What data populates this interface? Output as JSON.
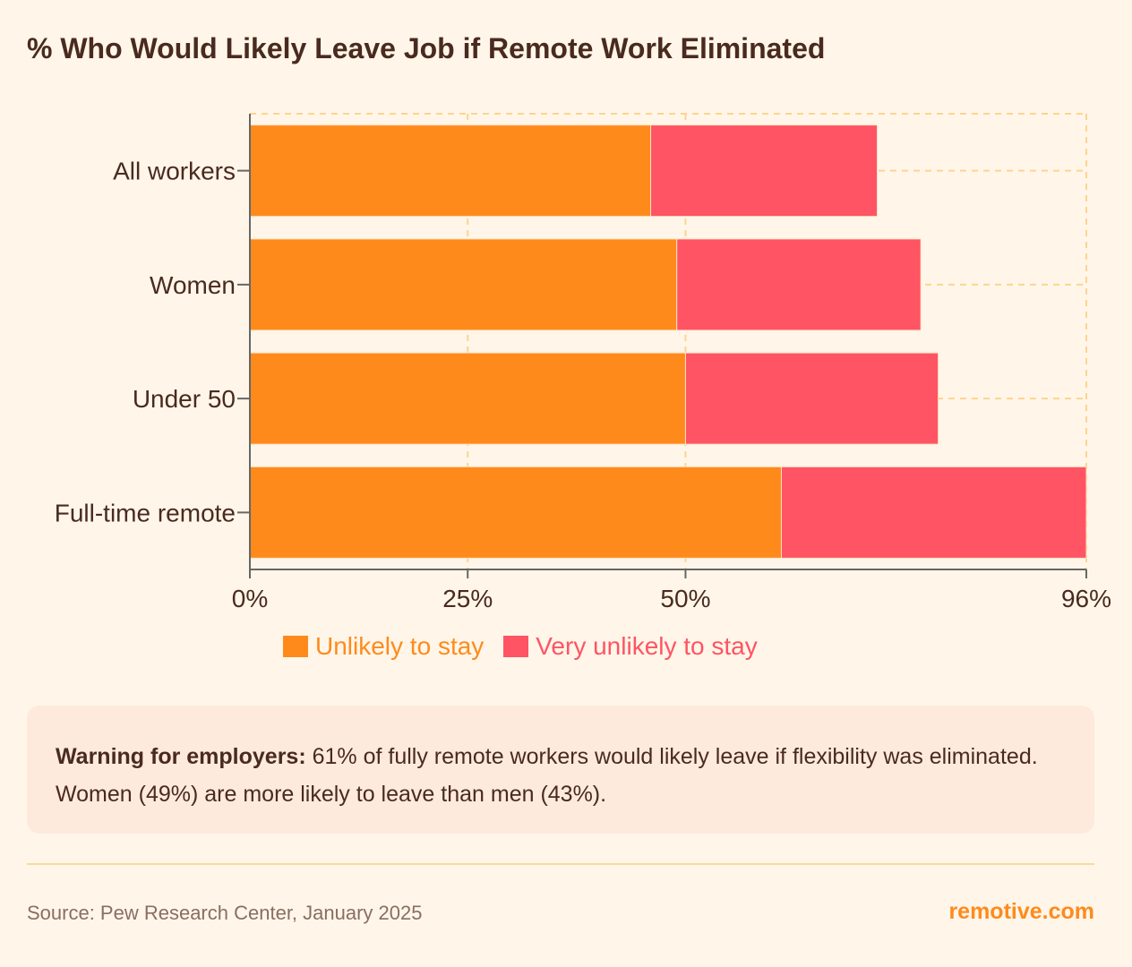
{
  "chart_data": {
    "type": "bar",
    "orientation": "horizontal",
    "stacked": true,
    "title": "% Who Would Likely Leave Job if Remote Work Eliminated",
    "categories": [
      "All workers",
      "Women",
      "Under 50",
      "Full-time remote"
    ],
    "series": [
      {
        "name": "Unlikely to stay",
        "color": "#FF8A1C",
        "values": [
          46,
          49,
          50,
          61
        ]
      },
      {
        "name": "Very unlikely to stay",
        "color": "#FF5463",
        "values": [
          26,
          28,
          29,
          35
        ]
      }
    ],
    "xlim": [
      0,
      96
    ],
    "xticks": [
      0,
      25,
      50,
      96
    ],
    "xtick_labels": [
      "0%",
      "25%",
      "50%",
      "96%"
    ],
    "grid": true,
    "legend": "bottom"
  },
  "callout": {
    "bold": "Warning for employers:",
    "text": " 61% of fully remote workers would likely leave if flexibility was eliminated. Women (49%) are more likely to leave than men (43%)."
  },
  "footer": {
    "source": "Source: Pew Research Center, January 2025",
    "brand": "remotive.com"
  }
}
